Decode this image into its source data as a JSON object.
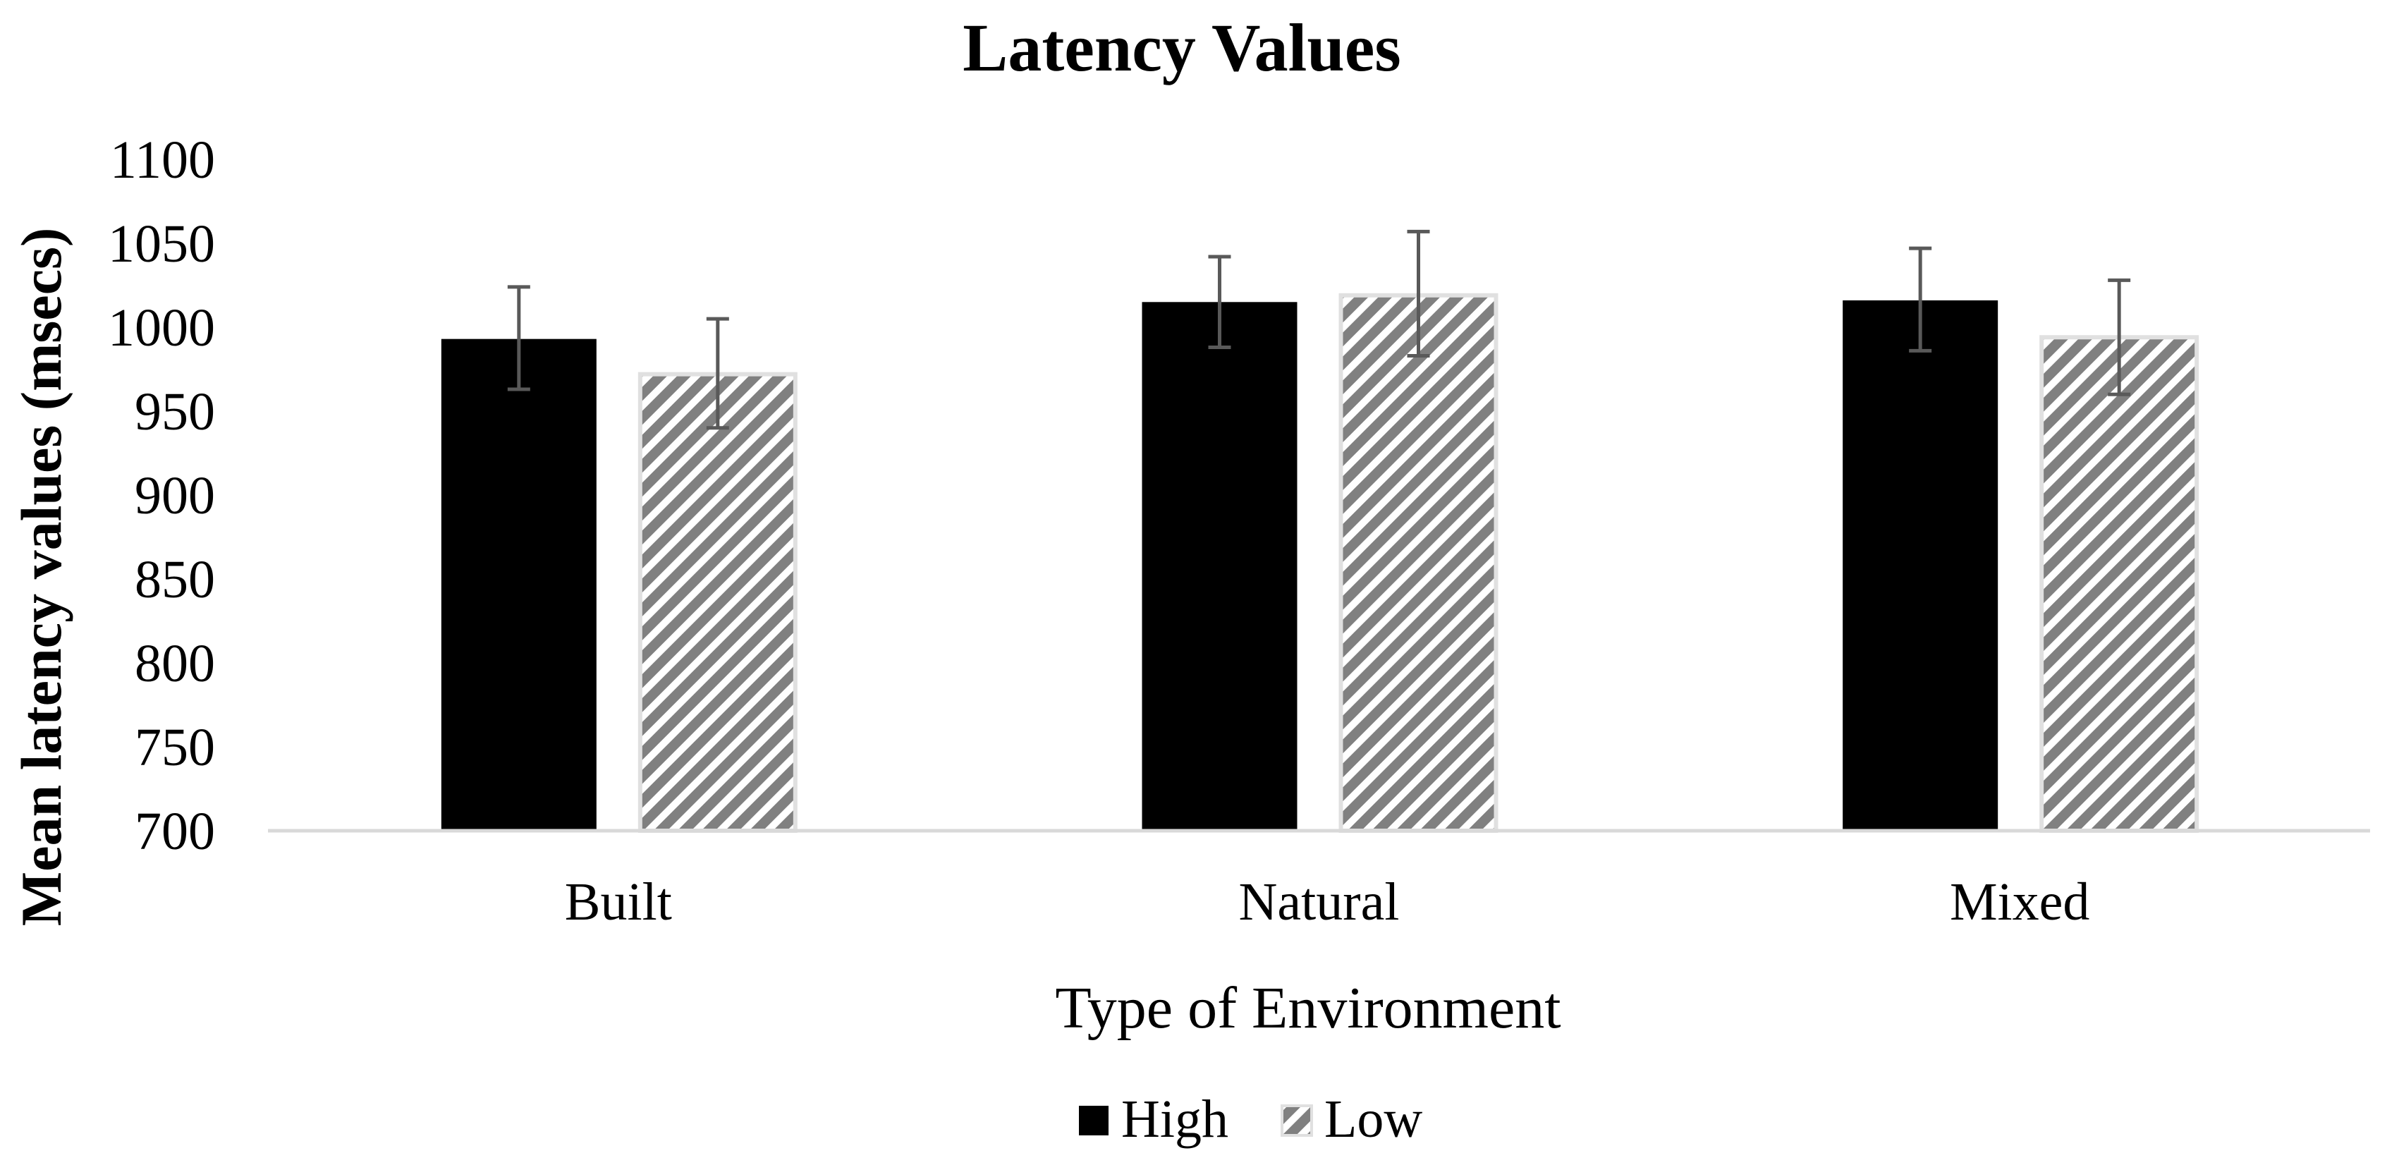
{
  "chart_data": {
    "type": "bar",
    "title": "Latency Values",
    "xlabel": "Type of Environment",
    "ylabel": "Mean latency values (msecs)",
    "ylim": [
      700,
      1100
    ],
    "yticks": [
      700,
      750,
      800,
      850,
      900,
      950,
      1000,
      1050,
      1100
    ],
    "categories": [
      "Built",
      "Natural",
      "Mixed"
    ],
    "series": [
      {
        "name": "High",
        "color": "#000000",
        "pattern": "solid",
        "values": [
          993,
          1015,
          1016
        ],
        "error_low": [
          963,
          988,
          986
        ],
        "error_high": [
          1024,
          1042,
          1047
        ]
      },
      {
        "name": "Low",
        "color": "#808080",
        "pattern": "diagonal-stripes",
        "values": [
          972,
          1019,
          994
        ],
        "error_low": [
          940,
          983,
          960
        ],
        "error_high": [
          1005,
          1057,
          1028
        ]
      }
    ],
    "legend_position": "bottom-center",
    "grid": false
  }
}
